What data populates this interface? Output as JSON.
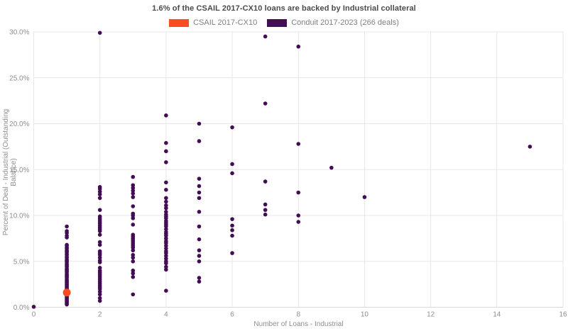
{
  "title": "1.6% of the CSAIL 2017-CX10 loans are backed by Industrial collateral",
  "legend": {
    "items": [
      {
        "label": "CSAIL 2017-CX10",
        "color": "#FB4D1F"
      },
      {
        "label": "Conduit 2017-2023 (266 deals)",
        "color": "#420D54"
      }
    ]
  },
  "axes": {
    "x_label": "Number of Loans - Industrial",
    "y_label": "Percent of Deal - Industrial (Outstanding Balance)"
  },
  "colors": {
    "csail_orange": "#FB4D1F",
    "conduit_purple": "#420D54",
    "grid": "#e7e7e7",
    "axis_line": "#d9d9d9",
    "tick_text": "#8e8e8e",
    "title_text": "#4a4a4a"
  },
  "chart_data": {
    "type": "scatter",
    "title": "1.6% of the CSAIL 2017-CX10 loans are backed by Industrial collateral",
    "xlabel": "Number of Loans - Industrial",
    "ylabel": "Percent of Deal - Industrial (Outstanding Balance)",
    "xlim": [
      0,
      16
    ],
    "ylim": [
      0,
      30
    ],
    "xticks": [
      0,
      2,
      4,
      6,
      8,
      10,
      12,
      14,
      16
    ],
    "yticks": [
      0,
      5,
      10,
      15,
      20,
      25,
      30
    ],
    "ytick_labels": [
      "0.0%",
      "5.0%",
      "10.0%",
      "15.0%",
      "20.0%",
      "25.0%",
      "30.0%"
    ],
    "grid": true,
    "legend_position": "top-center",
    "series": [
      {
        "name": "Conduit 2017-2023 (266 deals)",
        "color": "#420D54",
        "marker_radius": 2.8,
        "points": [
          [
            0,
            0.05
          ],
          [
            1,
            8.8
          ],
          [
            1,
            8.3
          ],
          [
            1,
            8.1
          ],
          [
            1,
            7.8
          ],
          [
            1,
            7.6
          ],
          [
            1,
            6.8
          ],
          [
            1,
            6.7
          ],
          [
            1,
            6.5
          ],
          [
            1,
            6.4
          ],
          [
            1,
            6.2
          ],
          [
            1,
            6.1
          ],
          [
            1,
            6.0
          ],
          [
            1,
            5.8
          ],
          [
            1,
            5.7
          ],
          [
            1,
            5.5
          ],
          [
            1,
            5.4
          ],
          [
            1,
            5.2
          ],
          [
            1,
            5.1
          ],
          [
            1,
            5.0
          ],
          [
            1,
            4.9
          ],
          [
            1,
            4.7
          ],
          [
            1,
            4.6
          ],
          [
            1,
            4.5
          ],
          [
            1,
            4.4
          ],
          [
            1,
            4.2
          ],
          [
            1,
            4.1
          ],
          [
            1,
            4.0
          ],
          [
            1,
            3.9
          ],
          [
            1,
            3.8
          ],
          [
            1,
            3.6
          ],
          [
            1,
            3.5
          ],
          [
            1,
            3.4
          ],
          [
            1,
            3.3
          ],
          [
            1,
            3.2
          ],
          [
            1,
            3.0
          ],
          [
            1,
            2.9
          ],
          [
            1,
            2.8
          ],
          [
            1,
            2.7
          ],
          [
            1,
            2.6
          ],
          [
            1,
            2.5
          ],
          [
            1,
            2.4
          ],
          [
            1,
            2.3
          ],
          [
            1,
            2.2
          ],
          [
            1,
            2.1
          ],
          [
            1,
            2.0
          ],
          [
            1,
            1.9
          ],
          [
            1,
            1.8
          ],
          [
            1,
            1.7
          ],
          [
            1,
            1.6
          ],
          [
            1,
            1.5
          ],
          [
            1,
            1.4
          ],
          [
            1,
            1.3
          ],
          [
            1,
            1.2
          ],
          [
            1,
            1.1
          ],
          [
            1,
            1.0
          ],
          [
            1,
            0.9
          ],
          [
            1,
            0.8
          ],
          [
            1,
            0.7
          ],
          [
            1,
            0.6
          ],
          [
            1,
            0.5
          ],
          [
            1,
            0.4
          ],
          [
            1,
            0.3
          ],
          [
            2,
            29.9
          ],
          [
            2,
            13.1
          ],
          [
            2,
            12.9
          ],
          [
            2,
            12.6
          ],
          [
            2,
            12.3
          ],
          [
            2,
            11.9
          ],
          [
            2,
            10.6
          ],
          [
            2,
            9.9
          ],
          [
            2,
            9.7
          ],
          [
            2,
            9.5
          ],
          [
            2,
            9.3
          ],
          [
            2,
            9.1
          ],
          [
            2,
            8.9
          ],
          [
            2,
            8.7
          ],
          [
            2,
            8.5
          ],
          [
            2,
            8.3
          ],
          [
            2,
            7.9
          ],
          [
            2,
            7.1
          ],
          [
            2,
            6.8
          ],
          [
            2,
            6.1
          ],
          [
            2,
            5.9
          ],
          [
            2,
            5.7
          ],
          [
            2,
            5.4
          ],
          [
            2,
            5.1
          ],
          [
            2,
            4.9
          ],
          [
            2,
            4.3
          ],
          [
            2,
            4.0
          ],
          [
            2,
            3.8
          ],
          [
            2,
            3.6
          ],
          [
            2,
            3.4
          ],
          [
            2,
            3.2
          ],
          [
            2,
            3.0
          ],
          [
            2,
            2.8
          ],
          [
            2,
            2.6
          ],
          [
            2,
            2.4
          ],
          [
            2,
            2.2
          ],
          [
            2,
            2.0
          ],
          [
            2,
            1.7
          ],
          [
            2,
            1.4
          ],
          [
            2,
            1.0
          ],
          [
            2,
            0.7
          ],
          [
            3,
            14.2
          ],
          [
            3,
            13.3
          ],
          [
            3,
            13.0
          ],
          [
            3,
            12.7
          ],
          [
            3,
            12.4
          ],
          [
            3,
            12.0
          ],
          [
            3,
            11.0
          ],
          [
            3,
            10.2
          ],
          [
            3,
            10.0
          ],
          [
            3,
            9.7
          ],
          [
            3,
            9.0
          ],
          [
            3,
            7.9
          ],
          [
            3,
            7.7
          ],
          [
            3,
            7.5
          ],
          [
            3,
            7.3
          ],
          [
            3,
            7.1
          ],
          [
            3,
            6.9
          ],
          [
            3,
            6.7
          ],
          [
            3,
            6.5
          ],
          [
            3,
            6.2
          ],
          [
            3,
            5.7
          ],
          [
            3,
            5.4
          ],
          [
            3,
            5.0
          ],
          [
            3,
            4.0
          ],
          [
            3,
            3.7
          ],
          [
            3,
            3.3
          ],
          [
            3,
            1.4
          ],
          [
            4,
            20.9
          ],
          [
            4,
            17.9
          ],
          [
            4,
            17.0
          ],
          [
            4,
            15.8
          ],
          [
            4,
            13.6
          ],
          [
            4,
            12.8
          ],
          [
            4,
            11.9
          ],
          [
            4,
            11.5
          ],
          [
            4,
            11.1
          ],
          [
            4,
            10.8
          ],
          [
            4,
            10.4
          ],
          [
            4,
            10.1
          ],
          [
            4,
            9.9
          ],
          [
            4,
            9.7
          ],
          [
            4,
            9.4
          ],
          [
            4,
            9.2
          ],
          [
            4,
            9.0
          ],
          [
            4,
            8.8
          ],
          [
            4,
            8.5
          ],
          [
            4,
            8.2
          ],
          [
            4,
            8.0
          ],
          [
            4,
            7.8
          ],
          [
            4,
            7.5
          ],
          [
            4,
            7.2
          ],
          [
            4,
            7.0
          ],
          [
            4,
            6.7
          ],
          [
            4,
            6.4
          ],
          [
            4,
            6.1
          ],
          [
            4,
            5.9
          ],
          [
            4,
            5.6
          ],
          [
            4,
            5.3
          ],
          [
            4,
            5.0
          ],
          [
            4,
            4.8
          ],
          [
            4,
            4.4
          ],
          [
            4,
            4.1
          ],
          [
            4,
            1.8
          ],
          [
            5,
            20.0
          ],
          [
            5,
            18.1
          ],
          [
            5,
            14.0
          ],
          [
            5,
            13.2
          ],
          [
            5,
            12.5
          ],
          [
            5,
            11.9
          ],
          [
            5,
            10.4
          ],
          [
            5,
            8.8
          ],
          [
            5,
            7.4
          ],
          [
            5,
            6.2
          ],
          [
            5,
            5.6
          ],
          [
            5,
            5.0
          ],
          [
            5,
            3.2
          ],
          [
            5,
            2.8
          ],
          [
            6,
            19.6
          ],
          [
            6,
            15.6
          ],
          [
            6,
            14.6
          ],
          [
            6,
            9.6
          ],
          [
            6,
            8.9
          ],
          [
            6,
            8.4
          ],
          [
            6,
            7.8
          ],
          [
            6,
            5.9
          ],
          [
            7,
            29.5
          ],
          [
            7,
            22.2
          ],
          [
            7,
            13.7
          ],
          [
            7,
            11.2
          ],
          [
            7,
            10.6
          ],
          [
            7,
            10.1
          ],
          [
            8,
            28.4
          ],
          [
            8,
            17.8
          ],
          [
            8,
            12.5
          ],
          [
            8,
            10.0
          ],
          [
            8,
            9.3
          ],
          [
            9,
            15.2
          ],
          [
            10,
            12.0
          ],
          [
            15,
            17.5
          ]
        ]
      },
      {
        "name": "CSAIL 2017-CX10",
        "color": "#FB4D1F",
        "marker_radius": 5.5,
        "points": [
          [
            1,
            1.6
          ]
        ]
      }
    ]
  }
}
